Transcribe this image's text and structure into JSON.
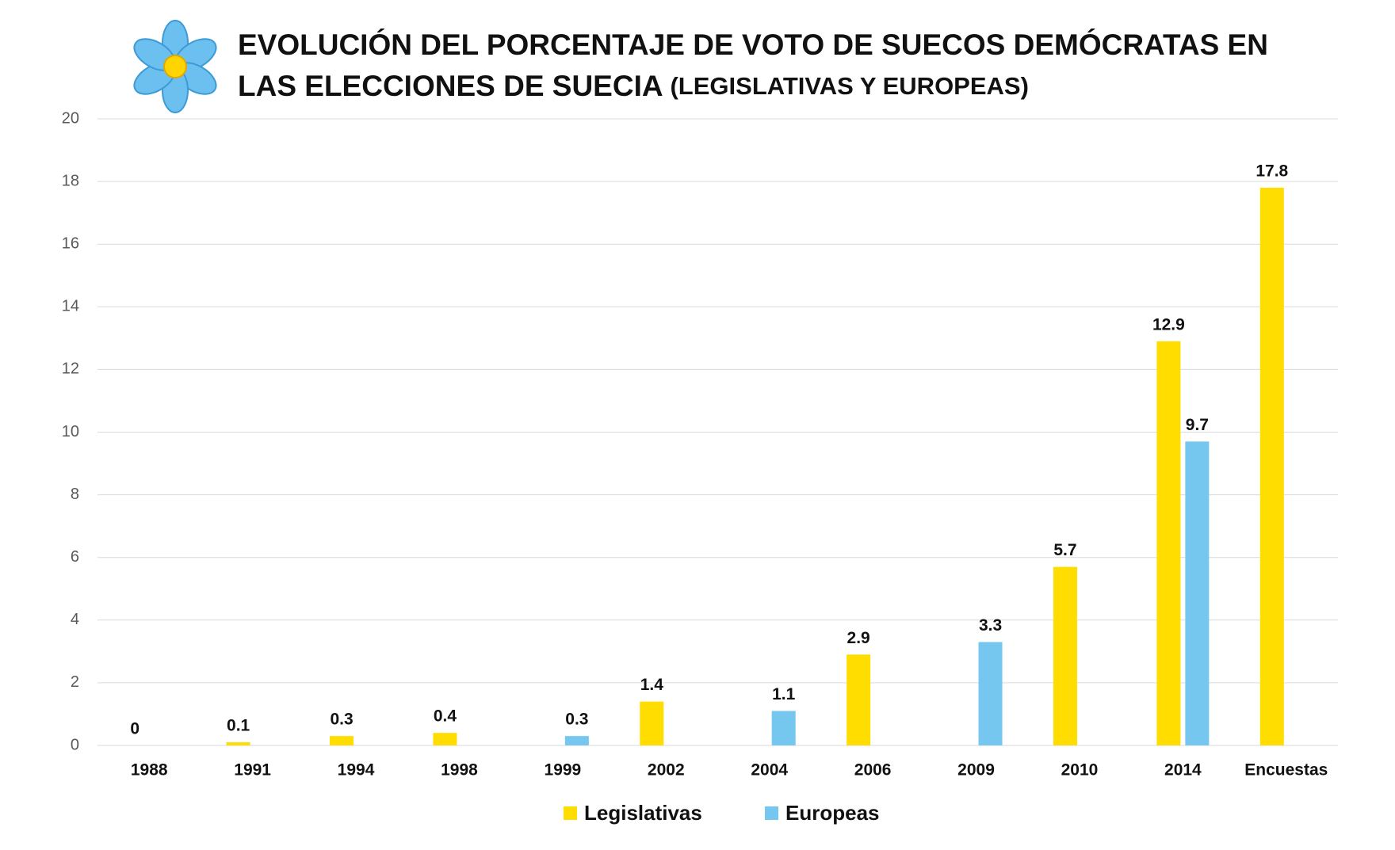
{
  "chart_data": {
    "type": "bar",
    "title": [
      "EVOLUCIÓN DEL PORCENTAJE DE VOTO DE SUECOS DEMÓCRATAS EN",
      "LAS ELECCIONES DE SUECIA"
    ],
    "subtitle": "(LEGISLATIVAS Y EUROPEAS)",
    "categories": [
      "1988",
      "1991",
      "1994",
      "1998",
      "1999",
      "2002",
      "2004",
      "2006",
      "2009",
      "2010",
      "2014",
      "Encuestas"
    ],
    "series": [
      {
        "name": "Legislativas",
        "color": "#ffdd00",
        "values": [
          0,
          0.1,
          0.3,
          0.4,
          null,
          1.4,
          null,
          2.9,
          null,
          5.7,
          12.9,
          17.8
        ]
      },
      {
        "name": "Europeas",
        "color": "#75c7ef",
        "values": [
          null,
          null,
          null,
          null,
          0.3,
          null,
          1.1,
          null,
          3.3,
          null,
          9.7,
          null
        ]
      }
    ],
    "ylim": [
      0,
      20
    ],
    "yticks": [
      0,
      2,
      4,
      6,
      8,
      10,
      12,
      14,
      16,
      18,
      20
    ],
    "grid": true,
    "legend": "bottom"
  }
}
